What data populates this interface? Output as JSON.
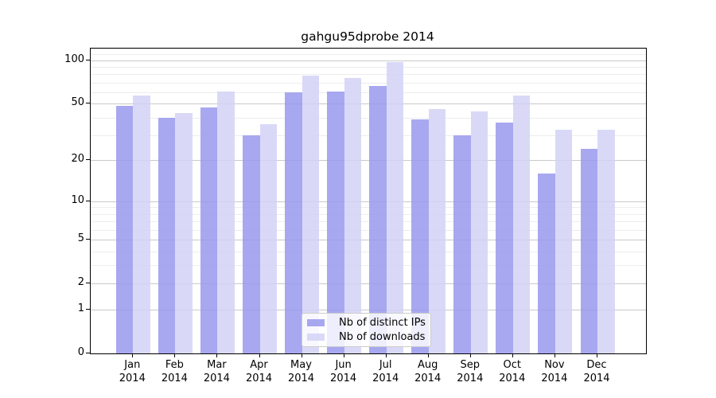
{
  "title": "gahgu95dprobe 2014",
  "chart_data": {
    "type": "bar",
    "title": "gahgu95dprobe 2014",
    "categories": [
      "Jan",
      "Feb",
      "Mar",
      "Apr",
      "May",
      "Jun",
      "Jul",
      "Aug",
      "Sep",
      "Oct",
      "Nov",
      "Dec"
    ],
    "year_label": "2014",
    "series": [
      {
        "name": "Nb of distinct IPs",
        "color": "#9999ed",
        "values": [
          48,
          40,
          47,
          30,
          60,
          61,
          66,
          39,
          30,
          37,
          16,
          24
        ]
      },
      {
        "name": "Nb of downloads",
        "color": "#d2d2f6",
        "values": [
          57,
          43,
          61,
          36,
          78,
          75,
          97,
          46,
          44,
          57,
          33,
          33
        ]
      }
    ],
    "xlabel": "",
    "ylabel": "",
    "scale": "log1p",
    "ylim": [
      0,
      121
    ],
    "y_ticks": [
      0,
      1,
      2,
      5,
      10,
      20,
      50,
      100
    ],
    "minor_gridlines": [
      3,
      4,
      6,
      7,
      8,
      9,
      30,
      40,
      60,
      70,
      80,
      90,
      110,
      120
    ],
    "grid": true,
    "legend_position": "bottom-center"
  }
}
